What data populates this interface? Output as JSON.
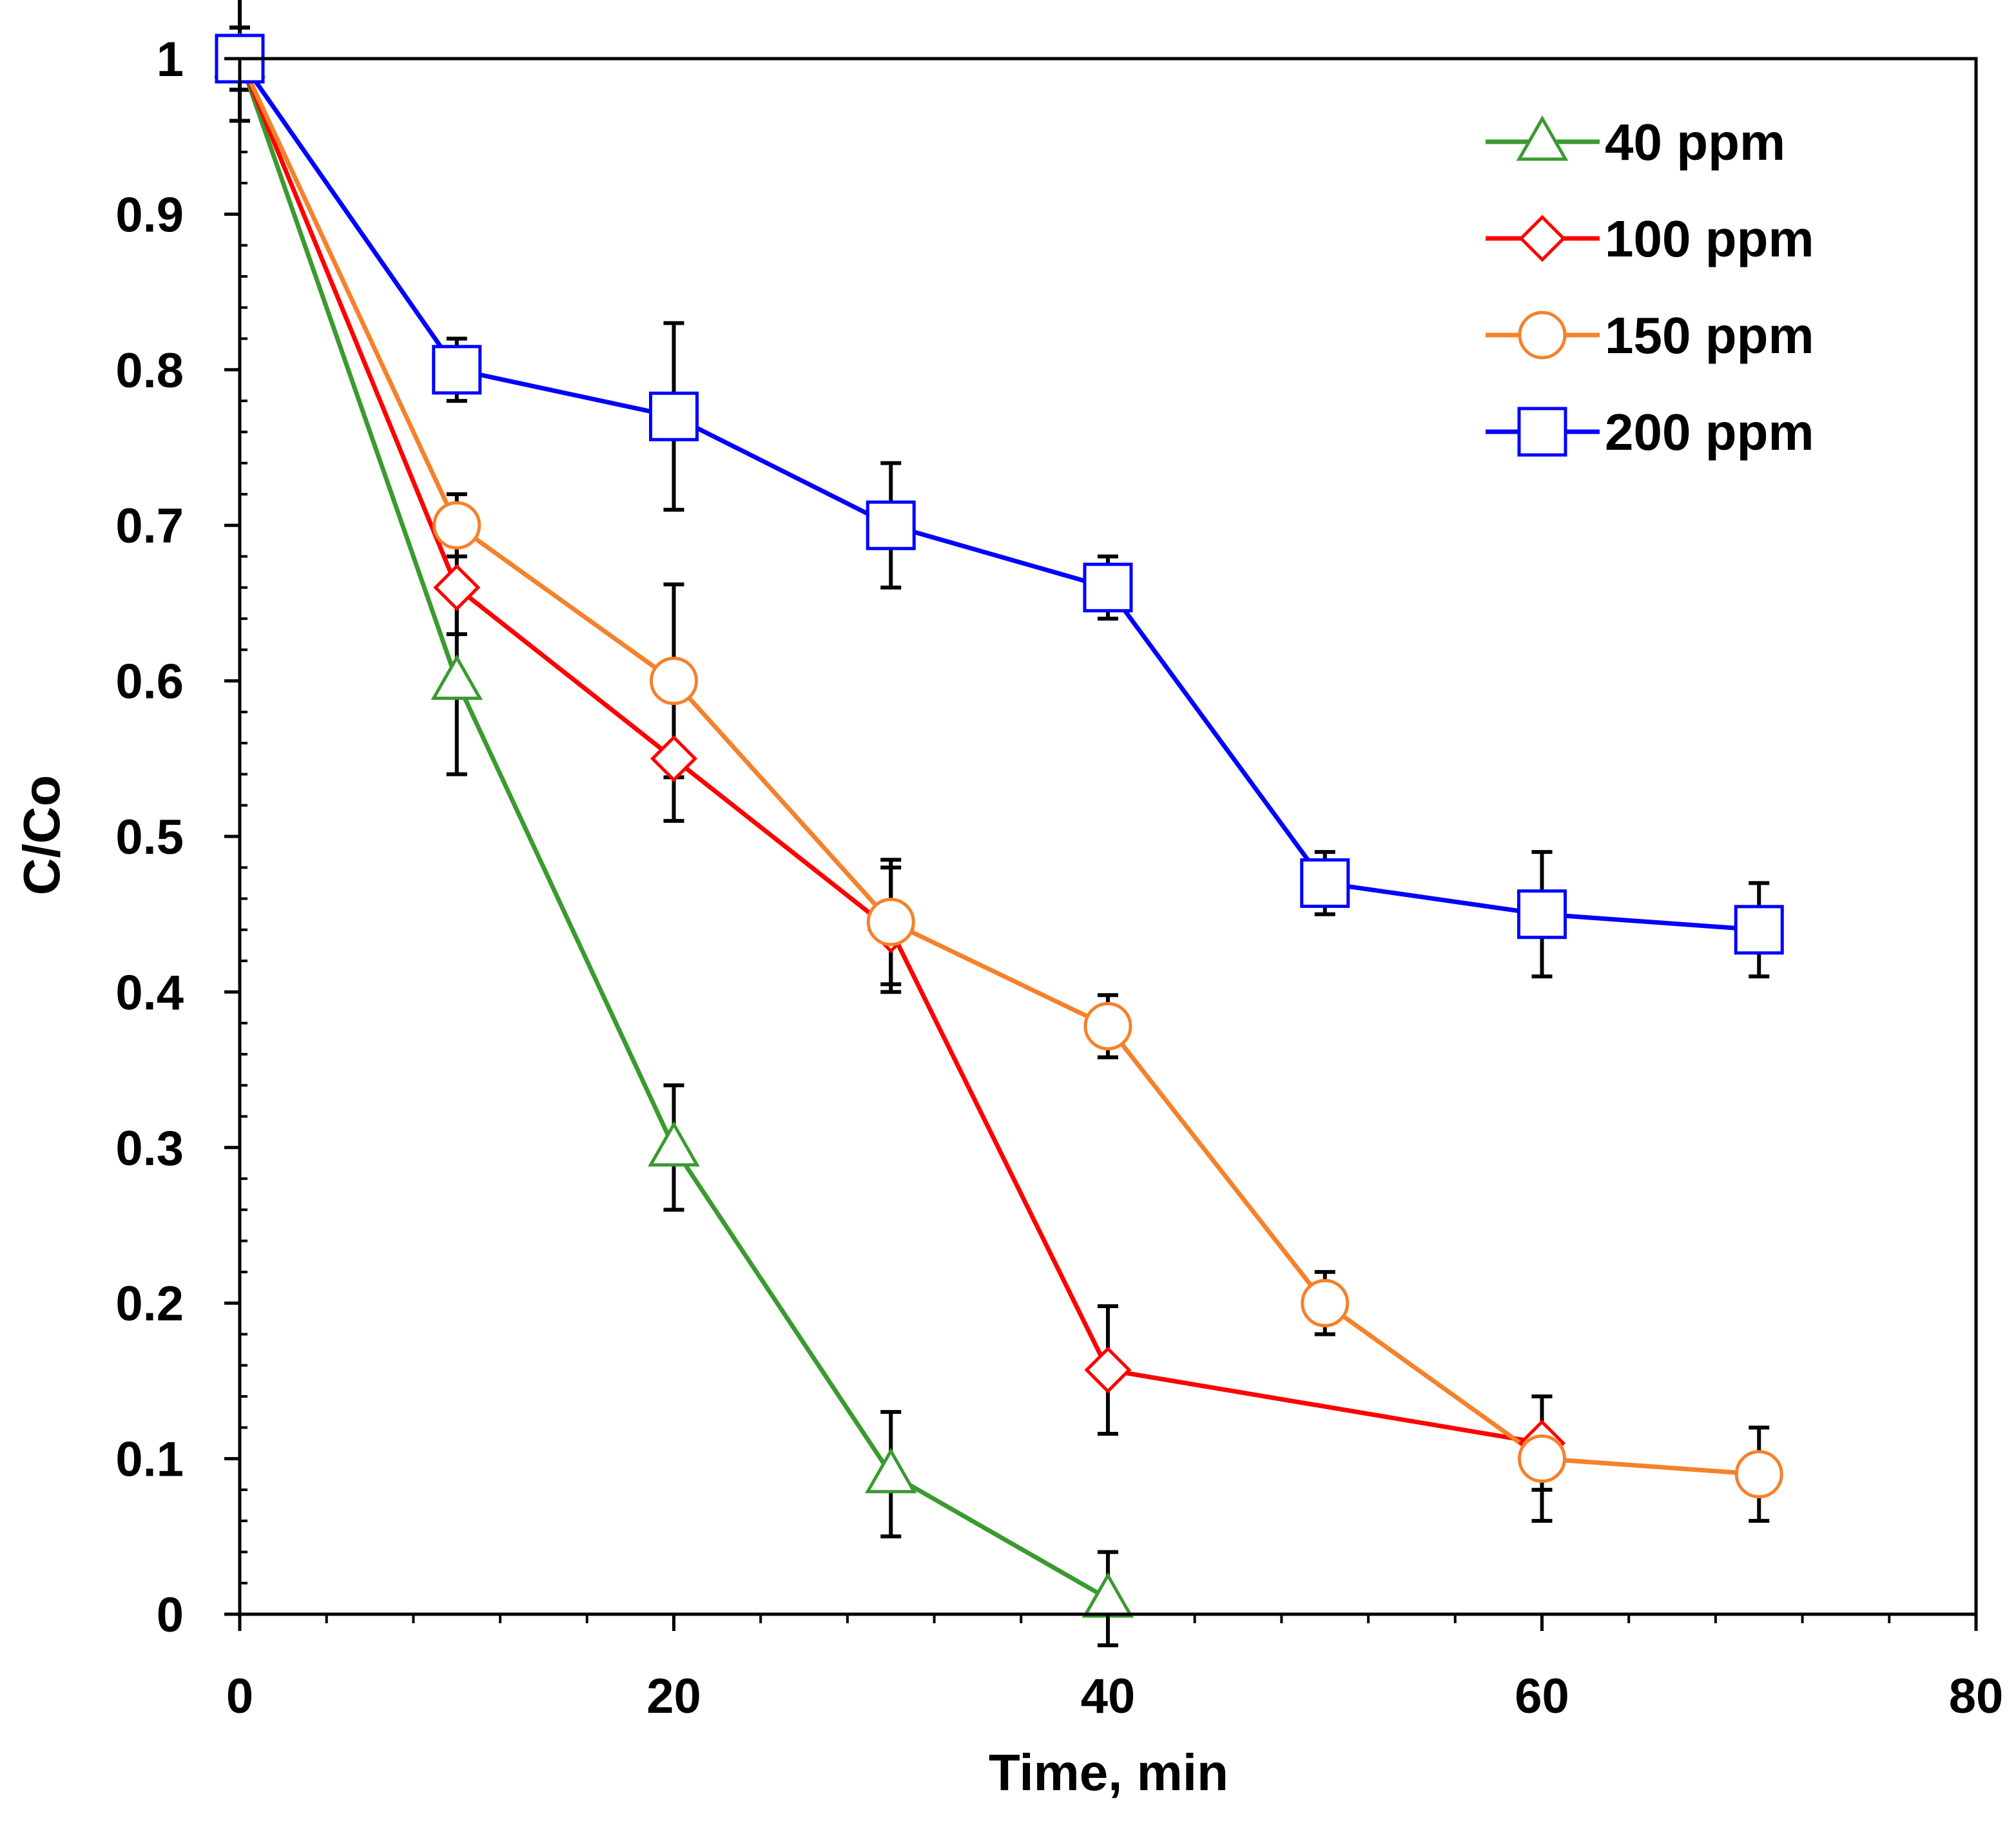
{
  "chart_data": {
    "type": "line",
    "title": "",
    "xlabel": "Time, min",
    "ylabel": "C/Co",
    "xlim": [
      0,
      80
    ],
    "ylim": [
      0,
      1
    ],
    "xticks": [
      0,
      20,
      40,
      60,
      80
    ],
    "xtick_labels": [
      "0",
      "20",
      "40",
      "60",
      "80"
    ],
    "yticks": [
      0,
      0.1,
      0.2,
      0.3,
      0.4,
      0.5,
      0.6,
      0.7,
      0.8,
      0.9,
      1
    ],
    "ytick_labels": [
      "0",
      "0.1",
      "0.2",
      "0.3",
      "0.4",
      "0.5",
      "0.6",
      "0.7",
      "0.8",
      "0.9",
      "1"
    ],
    "grid": false,
    "legend_position": "top-right",
    "series": [
      {
        "name": "40 ppm",
        "color": "#3a9a2f",
        "marker": "triangle",
        "x": [
          0,
          10,
          20,
          30,
          40
        ],
        "y": [
          1,
          0.6,
          0.3,
          0.09,
          0.01
        ],
        "err": [
          0.04,
          0.06,
          0.04,
          0.04,
          0.03
        ]
      },
      {
        "name": "100 ppm",
        "color": "#ff0000",
        "marker": "diamond",
        "x": [
          0,
          10,
          20,
          30,
          40,
          60
        ],
        "y": [
          1,
          0.66,
          0.55,
          0.44,
          0.157,
          0.11
        ],
        "err": [
          0.02,
          0.03,
          0.04,
          0.04,
          0.041,
          0.03
        ]
      },
      {
        "name": "150 ppm",
        "color": "#f5812a",
        "marker": "circle",
        "x": [
          0,
          10,
          20,
          30,
          40,
          50,
          60,
          70
        ],
        "y": [
          1,
          0.7,
          0.6,
          0.445,
          0.378,
          0.2,
          0.1,
          0.09
        ],
        "err": [
          0.02,
          0.02,
          0.062,
          0.04,
          0.02,
          0.02,
          0.04,
          0.03
        ]
      },
      {
        "name": "200 ppm",
        "color": "#0000ff",
        "marker": "square",
        "x": [
          0,
          10,
          20,
          30,
          40,
          50,
          60,
          70
        ],
        "y": [
          1,
          0.8,
          0.77,
          0.7,
          0.66,
          0.47,
          0.45,
          0.44
        ],
        "err": [
          0.02,
          0.02,
          0.06,
          0.04,
          0.02,
          0.02,
          0.04,
          0.03
        ]
      }
    ]
  }
}
